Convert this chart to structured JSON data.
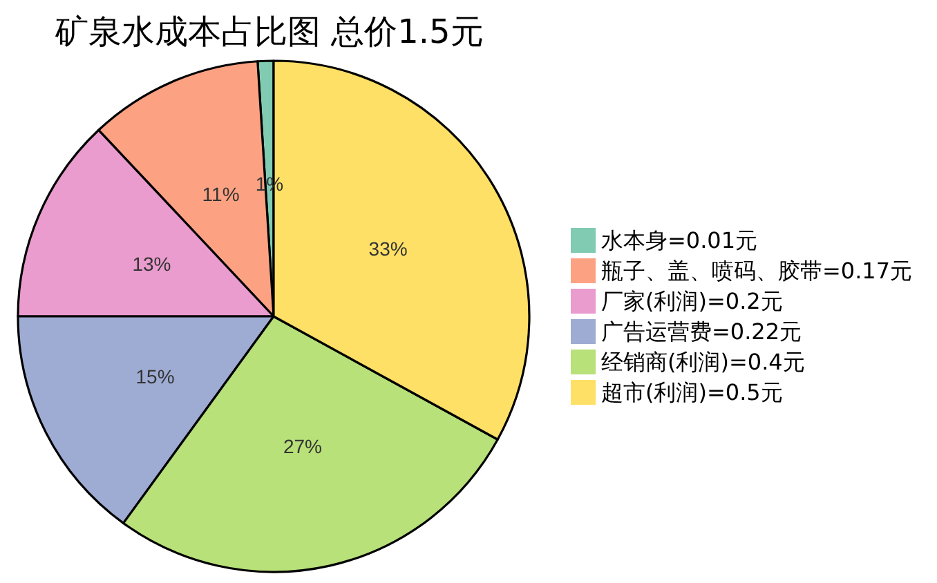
{
  "chart_data": {
    "type": "pie",
    "title": "矿泉水成本占比图 总价1.5元",
    "categories": [
      "水本身=0.01元",
      "瓶子、盖、喷码、胶带=0.17元",
      "厂家(利润)=0.2元",
      "广告运营费=0.22元",
      "经销商(利润)=0.4元",
      "超市(利润)=0.5元"
    ],
    "values": [
      1,
      11,
      13,
      15,
      27,
      33
    ],
    "value_labels": [
      "1%",
      "11%",
      "13%",
      "15%",
      "27%",
      "33%"
    ],
    "colors": [
      "#80cbb1",
      "#fca283",
      "#e99ccd",
      "#9eacd4",
      "#b8e179",
      "#ffe066"
    ],
    "legend": "right"
  }
}
